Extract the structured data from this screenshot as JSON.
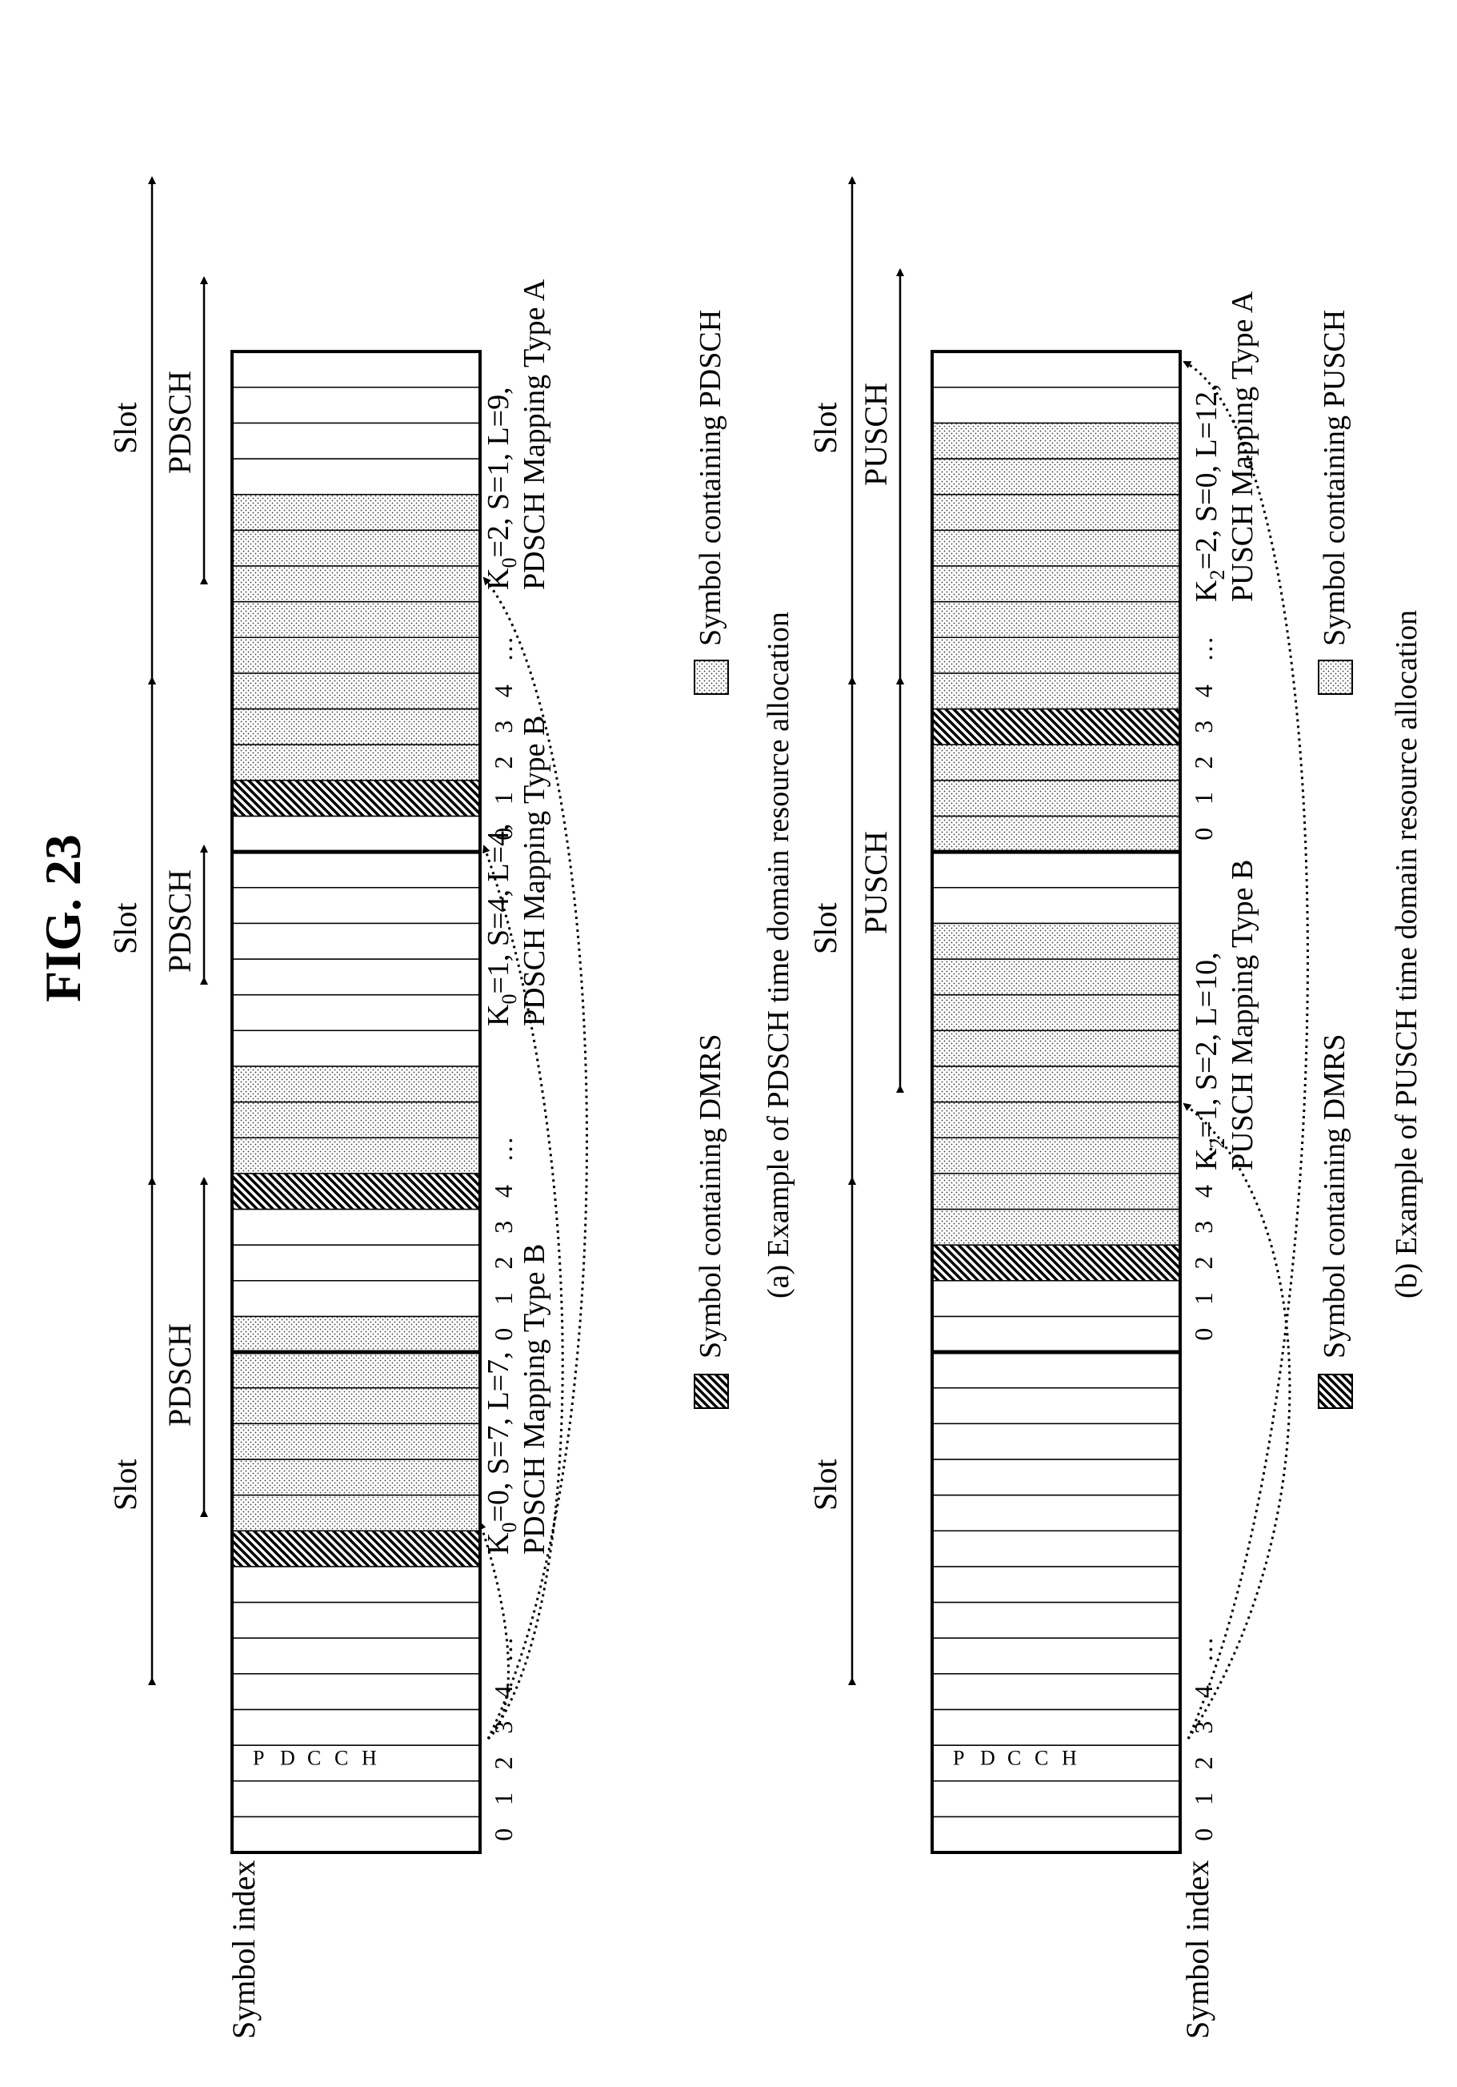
{
  "figure_title": "FIG. 23",
  "panel_a": {
    "symbol_index_label": "Symbol index",
    "slot_labels": [
      "Slot",
      "Slot",
      "Slot"
    ],
    "channel_labels": [
      "PDSCH",
      "PDSCH",
      "PDSCH"
    ],
    "pdcch_letters": [
      "P",
      "D",
      "C",
      "C",
      "H"
    ],
    "index_numbers": [
      "0",
      "1",
      "2",
      "3",
      "4",
      "…"
    ],
    "annotations": [
      {
        "line1": "K",
        "sub": "0",
        "rest": "=0, S=7, L=7,",
        "line2": "PDSCH Mapping Type B"
      },
      {
        "line1": "K",
        "sub": "0",
        "rest": "=1, S=4, L=4,",
        "line2": "PDSCH Mapping Type B"
      },
      {
        "line1": "K",
        "sub": "0",
        "rest": "=2, S=1, L=9,",
        "line2": "PDSCH Mapping Type A"
      }
    ],
    "legend_dmrs": "Symbol containing DMRS",
    "legend_data": "Symbol containing PDSCH",
    "caption": "(a) Example of PDSCH time domain resource allocation"
  },
  "panel_b": {
    "symbol_index_label": "Symbol index",
    "slot_labels": [
      "Slot",
      "Slot",
      "Slot"
    ],
    "channel_labels": [
      "PUSCH",
      "PUSCH"
    ],
    "pdcch_letters": [
      "P",
      "D",
      "C",
      "C",
      "H"
    ],
    "index_numbers": [
      "0",
      "1",
      "2",
      "3",
      "4",
      "…"
    ],
    "annotations": [
      {
        "line1": "K",
        "sub": "2",
        "rest": "=1, S=2, L=10,",
        "line2": "PUSCH Mapping Type B"
      },
      {
        "line1": "K",
        "sub": "2",
        "rest": "=2, S=0, L=12,",
        "line2": "PUSCH Mapping Type A"
      }
    ],
    "legend_dmrs": "Symbol containing DMRS",
    "legend_data": "Symbol containing PUSCH",
    "caption": "(b) Example of PUSCH time domain resource allocation"
  }
}
